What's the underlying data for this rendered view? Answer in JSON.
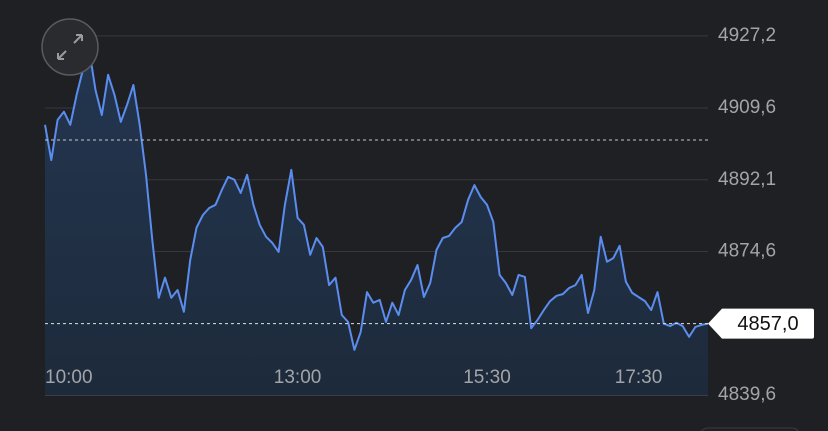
{
  "chart_data": {
    "type": "line",
    "categories": [
      "10:00",
      null,
      null,
      null,
      null,
      null,
      null,
      null,
      null,
      null,
      null,
      null,
      null,
      null,
      null,
      null,
      null,
      null,
      null,
      null,
      null,
      null,
      null,
      null,
      null,
      null,
      null,
      null,
      null,
      null,
      null,
      null,
      null,
      null,
      null,
      null,
      null,
      null,
      null,
      null,
      "13:00",
      null,
      null,
      null,
      null,
      null,
      null,
      null,
      null,
      null,
      null,
      null,
      null,
      null,
      null,
      null,
      null,
      null,
      null,
      null,
      null,
      null,
      null,
      null,
      null,
      null,
      null,
      null,
      null,
      null,
      "15:30",
      null,
      null,
      null,
      null,
      null,
      null,
      null,
      null,
      null,
      null,
      null,
      null,
      null,
      null,
      null,
      null,
      null,
      null,
      null,
      null,
      null,
      null,
      null,
      "17:30",
      null,
      null,
      null,
      null,
      null,
      null,
      null,
      null,
      null,
      null,
      null
    ],
    "values": [
      4905.5,
      4896.9,
      4906.7,
      4908.7,
      4905.5,
      4912.8,
      4918.9,
      4923.8,
      4914.0,
      4907.9,
      4917.7,
      4912.8,
      4906.2,
      4910.4,
      4915.2,
      4905.5,
      4893.3,
      4877.4,
      4863.3,
      4868.2,
      4863.3,
      4865.2,
      4859.9,
      4872.5,
      4880.4,
      4883.5,
      4885.2,
      4886.0,
      4889.6,
      4892.8,
      4892.1,
      4888.9,
      4893.3,
      4886.0,
      4881.1,
      4878.2,
      4876.7,
      4874.5,
      4886.0,
      4894.5,
      4882.8,
      4881.1,
      4873.8,
      4877.9,
      4875.7,
      4866.4,
      4868.2,
      4859.1,
      4857.4,
      4850.6,
      4855.0,
      4864.7,
      4862.1,
      4862.8,
      4857.4,
      4862.1,
      4859.1,
      4865.2,
      4867.7,
      4871.3,
      4863.5,
      4866.9,
      4875.0,
      4877.9,
      4878.4,
      4880.4,
      4881.8,
      4887.2,
      4890.8,
      4887.9,
      4886.0,
      4881.8,
      4868.9,
      4866.9,
      4864.0,
      4868.9,
      4868.4,
      4855.9,
      4857.9,
      4860.3,
      4862.5,
      4863.8,
      4864.2,
      4865.7,
      4866.4,
      4868.9,
      4859.6,
      4865.2,
      4878.2,
      4872.1,
      4873.0,
      4876.0,
      4867.2,
      4864.5,
      4863.5,
      4862.5,
      4860.3,
      4864.7,
      4857.0,
      4856.4,
      4857.2,
      4856.4,
      4853.8,
      4856.2,
      4856.7,
      4857.0
    ],
    "color": "#5b8def",
    "ylim": [
      4839.6,
      4933.5
    ],
    "yticks": [
      {
        "value": 4927.2,
        "label": "4927,2"
      },
      {
        "value": 4909.6,
        "label": "4909,6"
      },
      {
        "value": 4892.1,
        "label": "4892,1"
      },
      {
        "value": 4874.6,
        "label": "4874,6"
      },
      {
        "value": 4839.6,
        "label": "4839,6"
      }
    ],
    "grid": true,
    "reference_value": 4901.8,
    "current": {
      "value": 4857.0,
      "label": "4857,0"
    }
  }
}
